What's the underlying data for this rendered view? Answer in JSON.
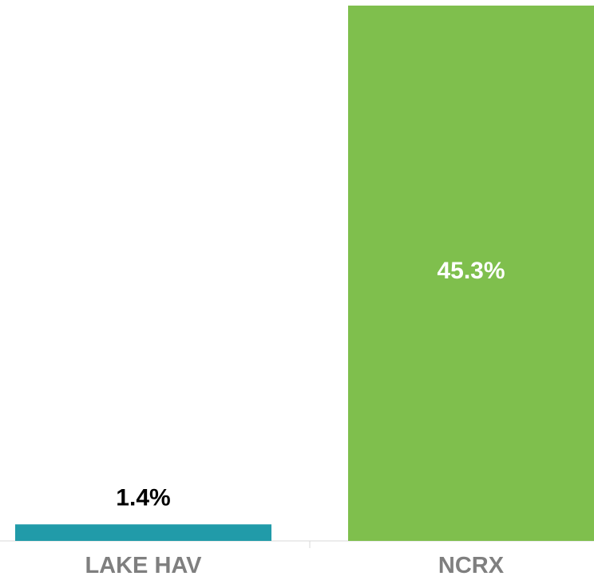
{
  "chart_data": {
    "type": "bar",
    "categories": [
      "LAKE HAV",
      "NCRX"
    ],
    "values": [
      1.4,
      45.3
    ],
    "value_labels": [
      "1.4%",
      "45.3%"
    ],
    "bar_colors": [
      "#219ba9",
      "#7fbf4d"
    ],
    "ylim": [
      0,
      45.3
    ],
    "grid": false,
    "legend": "none",
    "label_colors": {
      "category": "#7f7f7f",
      "value_outside": "#000000",
      "value_inside": "#ffffff"
    },
    "axis_color": "#d9d9d9"
  }
}
